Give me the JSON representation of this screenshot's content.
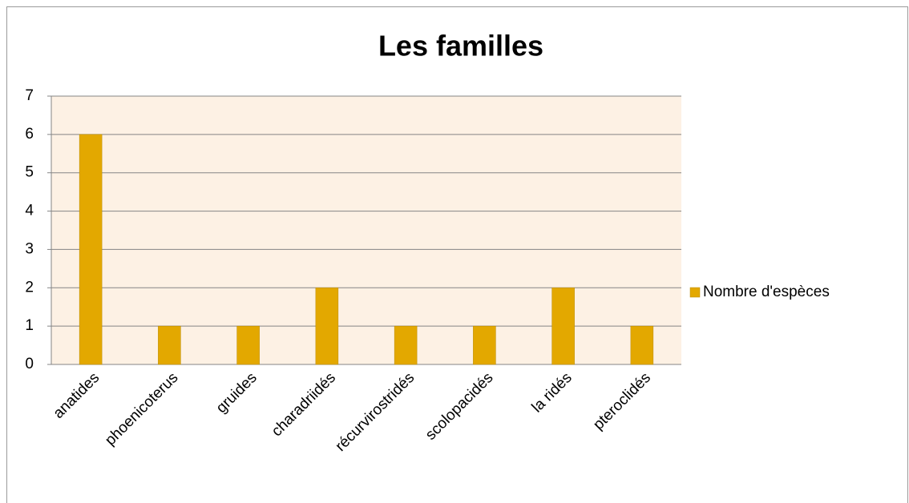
{
  "chart_data": {
    "type": "bar",
    "title": "Les familles",
    "categories": [
      "anatides",
      "phoenicoterus",
      "gruides",
      "charadriidés",
      "récurvirostridés",
      "scolopacidés",
      "la ridés",
      "pteroclidés"
    ],
    "series": [
      {
        "name": "Nombre d'espèces",
        "color": "#e3a800",
        "values": [
          6,
          1,
          1,
          2,
          1,
          1,
          2,
          1
        ]
      }
    ],
    "ylim": [
      0,
      7
    ],
    "yticks": [
      0,
      1,
      2,
      3,
      4,
      5,
      6,
      7
    ],
    "grid": true,
    "legend": "right"
  }
}
